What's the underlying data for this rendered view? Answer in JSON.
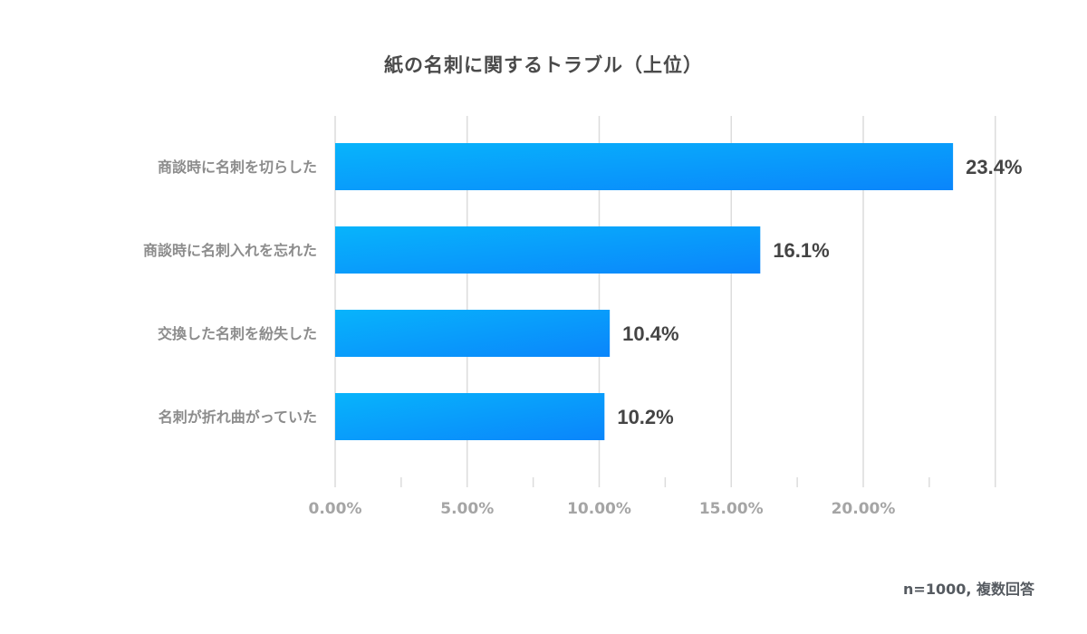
{
  "chart_data": {
    "type": "bar",
    "orientation": "horizontal",
    "title": "紙の名刺に関するトラブル（上位）",
    "categories": [
      "商談時に名刺を切らした",
      "商談時に名刺入れを忘れた",
      "交換した名刺を紛失した",
      "名刺が折れ曲がっていた"
    ],
    "values": [
      23.4,
      16.1,
      10.4,
      10.2
    ],
    "value_labels": [
      "23.4%",
      "16.1%",
      "10.4%",
      "10.2%"
    ],
    "x_ticks": [
      0,
      5,
      10,
      15,
      20
    ],
    "x_tick_labels": [
      "0.00%",
      "5.00%",
      "10.00%",
      "15.00%",
      "20.00%"
    ],
    "xlim": [
      0,
      25
    ],
    "xlabel": "",
    "ylabel": "",
    "grid": true,
    "legend": "none",
    "colors": {
      "bar_start": "#08b4fb",
      "bar_end": "#0a85fb",
      "grid": "#dcdcdc",
      "category_text": "#8c8c8c",
      "value_text": "#444444",
      "tick_text": "#a5a5a5"
    }
  },
  "note": "n=1000, 複数回答"
}
